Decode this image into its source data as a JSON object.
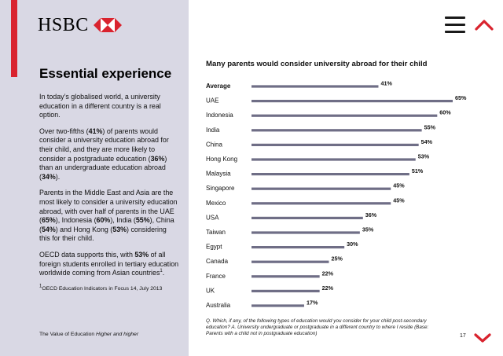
{
  "brand": {
    "name": "HSBC",
    "red": "#d9232e",
    "panel_color": "#d9d8e4",
    "bar_color": "#6f6e86"
  },
  "nav": {
    "menu_icon": "hamburger-icon",
    "up_icon": "chevron-up-icon",
    "down_icon": "chevron-down-icon"
  },
  "sidebar": {
    "heading": "Essential experience",
    "p1": "In today’s globalised world, a university education in a different country is a real option.",
    "p2": {
      "t1": "Over two-fifths (",
      "v1": "41%",
      "t2": ") of parents would consider a university education abroad for their child, and they are more likely to consider a postgraduate education (",
      "v2": "36%",
      "t3": ") than an undergraduate education abroad (",
      "v3": "34%",
      "t4": ")."
    },
    "p3": {
      "t1": "Parents in the Middle East and Asia are the most likely to consider a university education abroad, with over half of parents in the UAE (",
      "v1": "65%",
      "t2": "), Indonesia (",
      "v2": "60%",
      "t3": "), India (",
      "v3": "55%",
      "t4": "), China (",
      "v4": "54%",
      "t5": ") and Hong Kong (",
      "v5": "53%",
      "t6": ") considering this for their child."
    },
    "p4": {
      "t1": "OECD data supports this, with ",
      "v1": "53%",
      "t2": " of all foreign students enrolled in tertiary education worldwide coming from Asian countries",
      "sup": "1",
      "t3": "."
    },
    "footnote": {
      "sup": "1",
      "text": "OECD Education Indicators in Focus 14, July 2013"
    }
  },
  "footer": {
    "text": "The Value of Education ",
    "italic": "Higher and higher"
  },
  "page_number": "17",
  "chart_data": {
    "type": "bar",
    "orientation": "horizontal",
    "title": "Many parents would consider university abroad for their child",
    "categories": [
      "Average",
      "UAE",
      "Indonesia",
      "India",
      "China",
      "Hong Kong",
      "Malaysia",
      "Singapore",
      "Mexico",
      "USA",
      "Taiwan",
      "Egypt",
      "Canada",
      "France",
      "UK",
      "Australia"
    ],
    "values": [
      41,
      65,
      60,
      55,
      54,
      53,
      51,
      45,
      45,
      36,
      35,
      30,
      25,
      22,
      22,
      17
    ],
    "value_labels": [
      "41%",
      "65%",
      "60%",
      "55%",
      "54%",
      "53%",
      "51%",
      "45%",
      "45%",
      "36%",
      "35%",
      "30%",
      "25%",
      "22%",
      "22%",
      "17%"
    ],
    "highlight_category": "Average",
    "bar_color": "#6f6e86",
    "xlim": [
      0,
      65
    ],
    "grid": false,
    "legend": "none"
  },
  "chart_note": "Q. Which, if any, of the following types of education would you consider for your child post-secondary education? A. University undergraduate or postgraduate in a different country to where I reside (Base: Parents with a child not in postgraduate education)"
}
